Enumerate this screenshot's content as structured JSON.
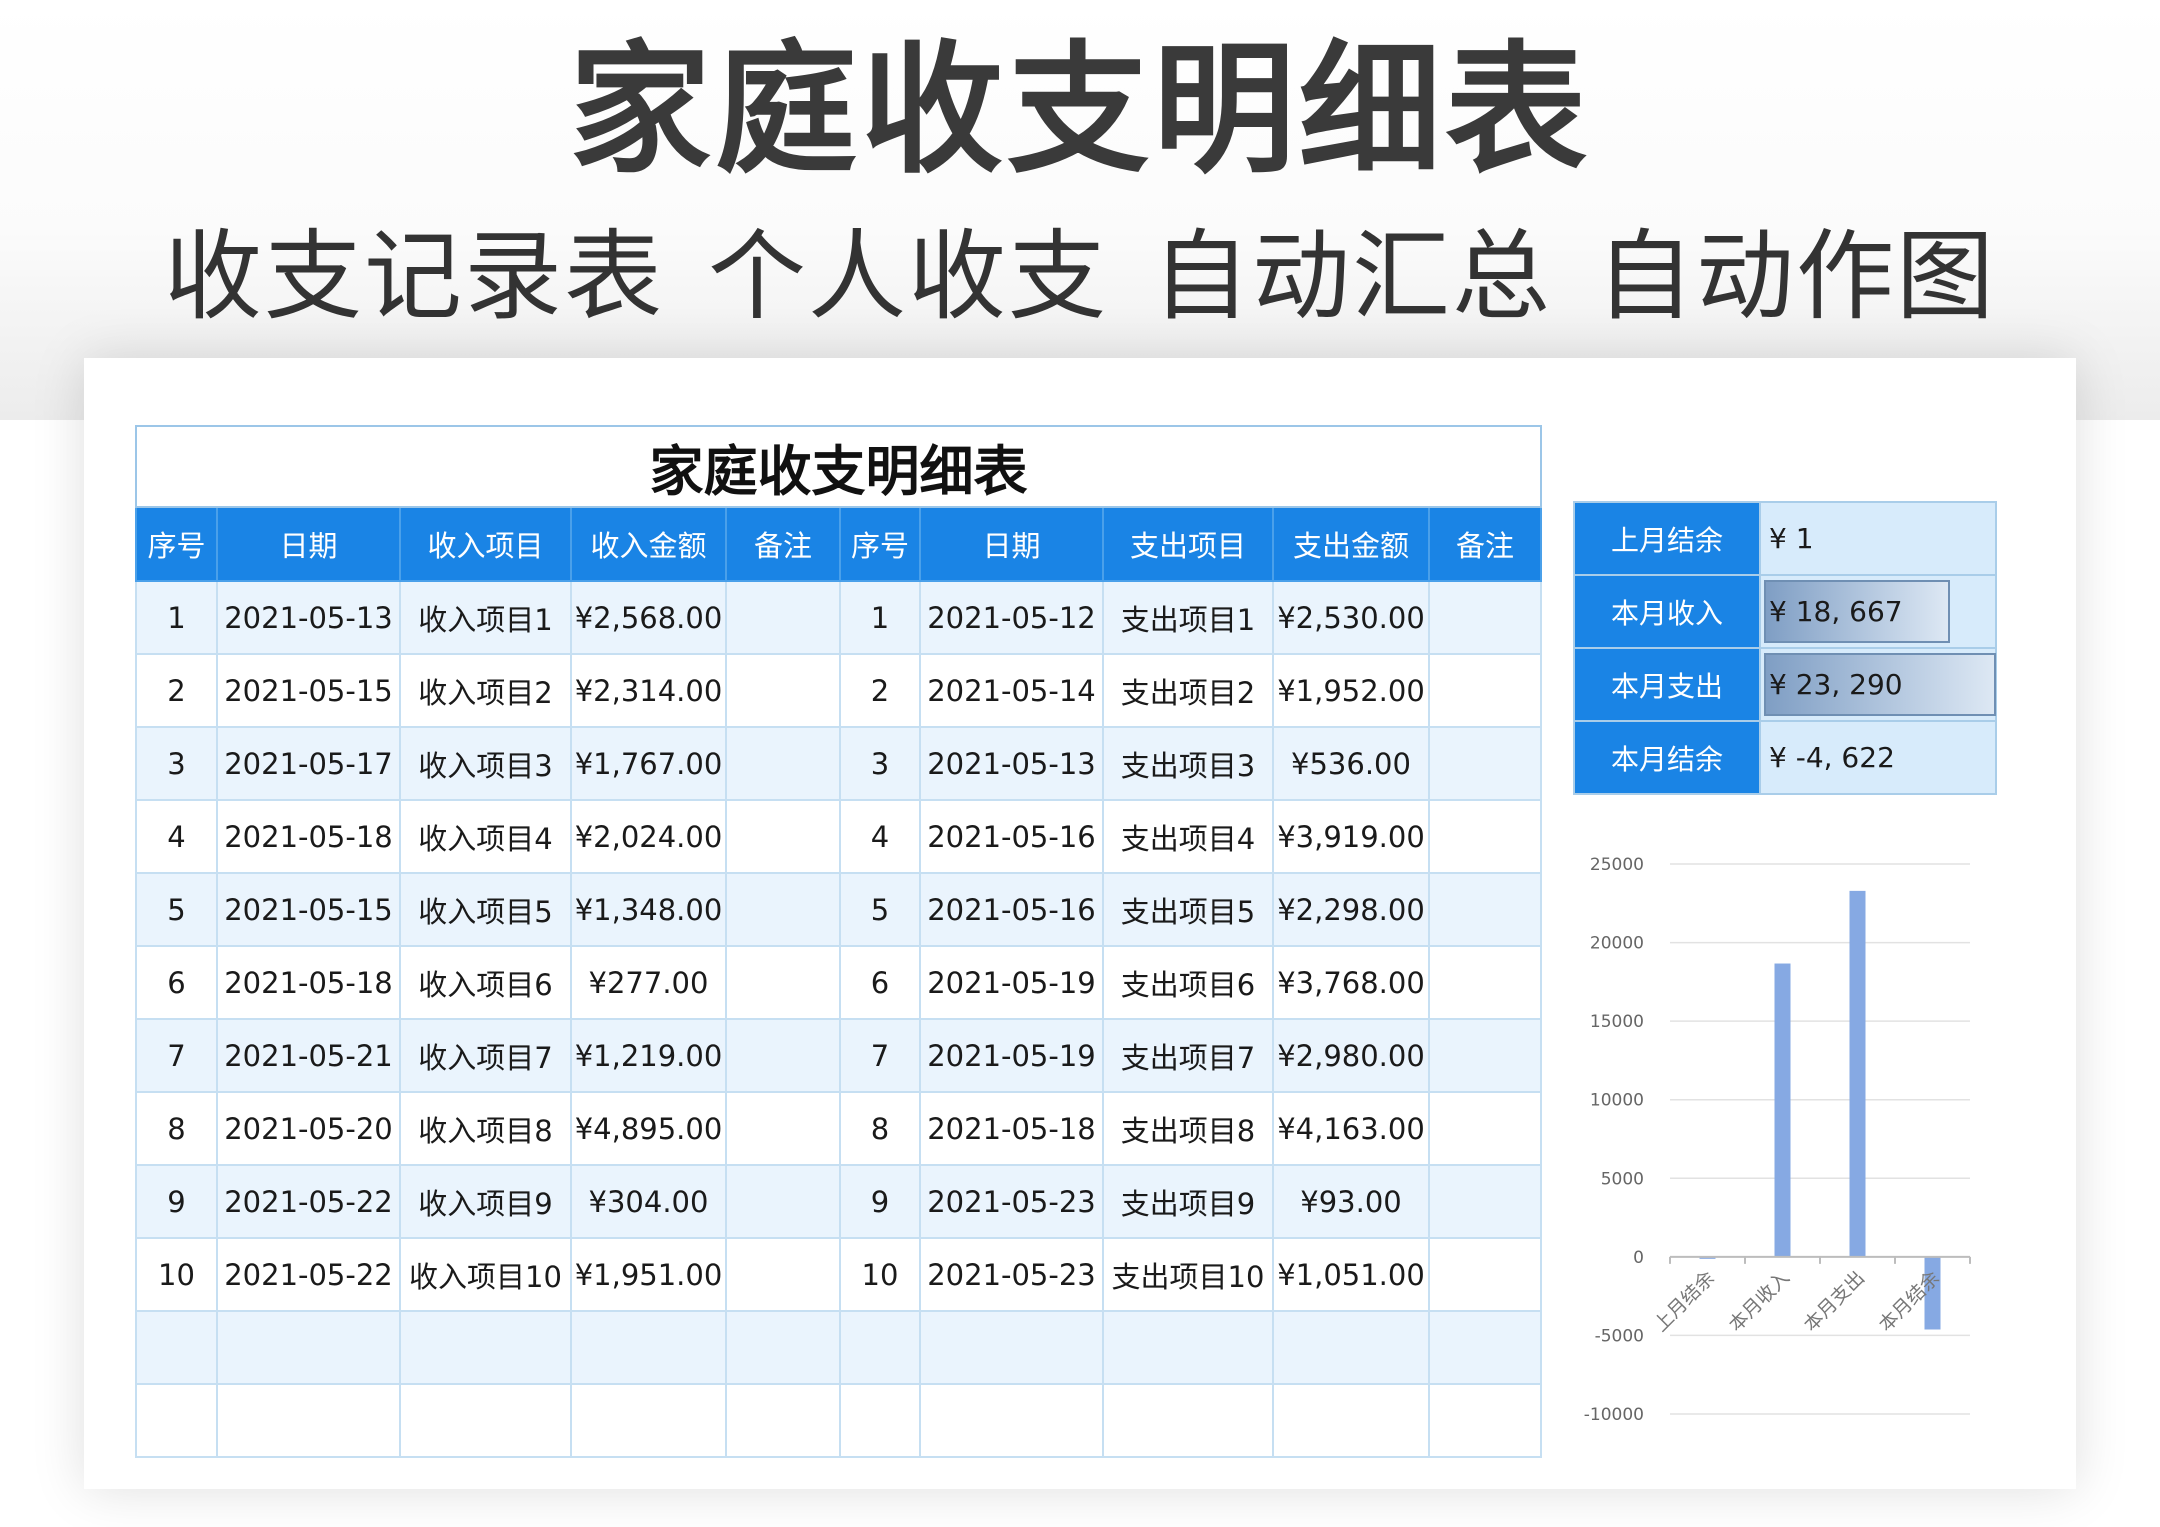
{
  "header": {
    "title": "家庭收支明细表",
    "subtitle_parts": [
      "收支记录表",
      "个人收支",
      "自动汇总",
      "自动作图"
    ]
  },
  "sheet": {
    "title": "家庭收支明细表",
    "columns": [
      "序号",
      "日期",
      "收入项目",
      "收入金额",
      "备注",
      "序号",
      "日期",
      "支出项目",
      "支出金额",
      "备注"
    ],
    "rows": [
      [
        "1",
        "2021-05-13",
        "收入项目1",
        "¥2,568.00",
        "",
        "1",
        "2021-05-12",
        "支出项目1",
        "¥2,530.00",
        ""
      ],
      [
        "2",
        "2021-05-15",
        "收入项目2",
        "¥2,314.00",
        "",
        "2",
        "2021-05-14",
        "支出项目2",
        "¥1,952.00",
        ""
      ],
      [
        "3",
        "2021-05-17",
        "收入项目3",
        "¥1,767.00",
        "",
        "3",
        "2021-05-13",
        "支出项目3",
        "¥536.00",
        ""
      ],
      [
        "4",
        "2021-05-18",
        "收入项目4",
        "¥2,024.00",
        "",
        "4",
        "2021-05-16",
        "支出项目4",
        "¥3,919.00",
        ""
      ],
      [
        "5",
        "2021-05-15",
        "收入项目5",
        "¥1,348.00",
        "",
        "5",
        "2021-05-16",
        "支出项目5",
        "¥2,298.00",
        ""
      ],
      [
        "6",
        "2021-05-18",
        "收入项目6",
        "¥277.00",
        "",
        "6",
        "2021-05-19",
        "支出项目6",
        "¥3,768.00",
        ""
      ],
      [
        "7",
        "2021-05-21",
        "收入项目7",
        "¥1,219.00",
        "",
        "7",
        "2021-05-19",
        "支出项目7",
        "¥2,980.00",
        ""
      ],
      [
        "8",
        "2021-05-20",
        "收入项目8",
        "¥4,895.00",
        "",
        "8",
        "2021-05-18",
        "支出项目8",
        "¥4,163.00",
        ""
      ],
      [
        "9",
        "2021-05-22",
        "收入项目9",
        "¥304.00",
        "",
        "9",
        "2021-05-23",
        "支出项目9",
        "¥93.00",
        ""
      ],
      [
        "10",
        "2021-05-22",
        "收入项目10",
        "¥1,951.00",
        "",
        "10",
        "2021-05-23",
        "支出项目10",
        "¥1,051.00",
        ""
      ],
      [
        "",
        "",
        "",
        "",
        "",
        "",
        "",
        "",
        "",
        ""
      ],
      [
        "",
        "",
        "",
        "",
        "",
        "",
        "",
        "",
        "",
        ""
      ]
    ]
  },
  "summary": {
    "items": [
      {
        "label": "上月结余",
        "value": "¥ 1",
        "bar_fraction": 0
      },
      {
        "label": "本月收入",
        "value": "¥ 18, 667",
        "bar_fraction": 0.8
      },
      {
        "label": "本月支出",
        "value": "¥ 23, 290",
        "bar_fraction": 1.0
      },
      {
        "label": "本月结余",
        "value": "¥ -4, 622",
        "bar_fraction": 0
      }
    ]
  },
  "colors": {
    "accent": "#1a84e5",
    "row_alt": "#eaf4fd",
    "bar": "#86a9e3",
    "title": "#3a3a3a"
  },
  "chart_data": {
    "type": "bar",
    "categories": [
      "上月结余",
      "本月收入",
      "本月支出",
      "本月结余"
    ],
    "values": [
      1,
      18667,
      23290,
      -4622
    ],
    "ylim": [
      -10000,
      25000
    ],
    "yticks": [
      -10000,
      -5000,
      0,
      5000,
      10000,
      15000,
      20000,
      25000
    ],
    "grid": true,
    "legend": "none",
    "title": "",
    "xlabel": "",
    "ylabel": ""
  }
}
